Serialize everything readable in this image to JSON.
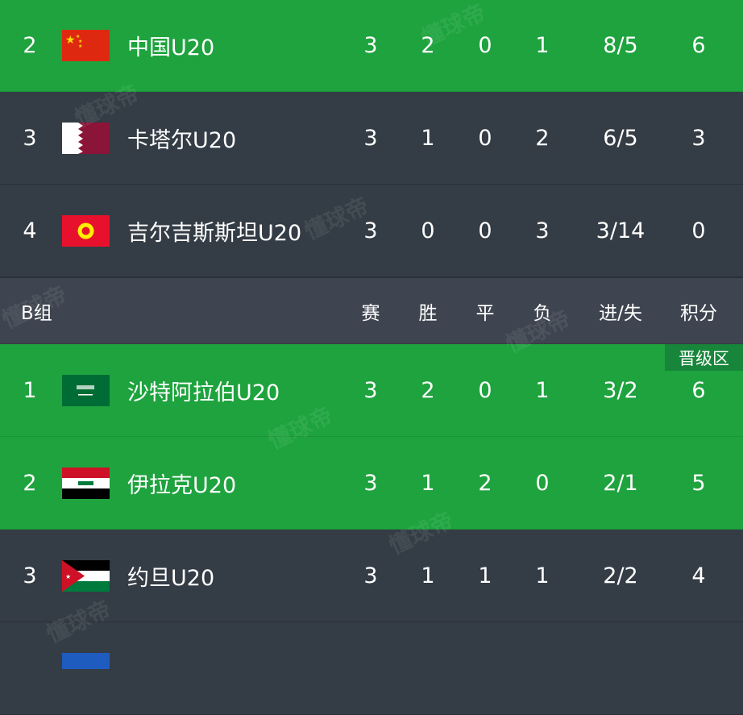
{
  "group_header": {
    "title": "B组",
    "columns": [
      "赛",
      "胜",
      "平",
      "负",
      "进/失",
      "积分"
    ]
  },
  "badge": "晋级区",
  "watermark": "懂球帝",
  "colors": {
    "qualified": "#1ea33e",
    "normal": "#343c45",
    "header": "#3e4550"
  },
  "group_a_rows": [
    {
      "rank": "2",
      "flag": "china-flag",
      "team": "中国U20",
      "stats": [
        "3",
        "2",
        "0",
        "1",
        "8/5",
        "6"
      ],
      "qualified": true
    },
    {
      "rank": "3",
      "flag": "qatar-flag",
      "team": "卡塔尔U20",
      "stats": [
        "3",
        "1",
        "0",
        "2",
        "6/5",
        "3"
      ],
      "qualified": false
    },
    {
      "rank": "4",
      "flag": "kyrgyzstan-flag",
      "team": "吉尔吉斯斯坦U20",
      "stats": [
        "3",
        "0",
        "0",
        "3",
        "3/14",
        "0"
      ],
      "qualified": false
    }
  ],
  "group_b_rows": [
    {
      "rank": "1",
      "flag": "saudi-arabia-flag",
      "team": "沙特阿拉伯U20",
      "stats": [
        "3",
        "2",
        "0",
        "1",
        "3/2",
        "6"
      ],
      "qualified": true
    },
    {
      "rank": "2",
      "flag": "iraq-flag",
      "team": "伊拉克U20",
      "stats": [
        "3",
        "1",
        "2",
        "0",
        "2/1",
        "5"
      ],
      "qualified": true
    },
    {
      "rank": "3",
      "flag": "jordan-flag",
      "team": "约旦U20",
      "stats": [
        "3",
        "1",
        "1",
        "1",
        "2/2",
        "4"
      ],
      "qualified": false
    }
  ]
}
